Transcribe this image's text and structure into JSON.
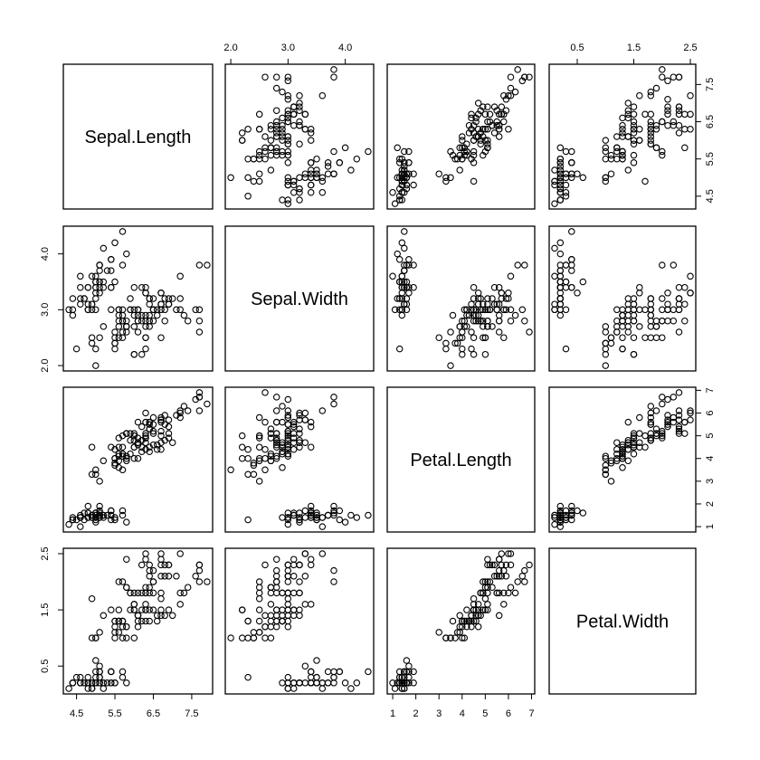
{
  "chart_data": {
    "type": "scatter",
    "chart_kind": "scatterplot-matrix",
    "variables": [
      "Sepal.Length",
      "Sepal.Width",
      "Petal.Length",
      "Petal.Width"
    ],
    "ranges": {
      "Sepal.Length": [
        4.3,
        7.9
      ],
      "Sepal.Width": [
        2.0,
        4.4
      ],
      "Petal.Length": [
        1.0,
        6.9
      ],
      "Petal.Width": [
        0.1,
        2.5
      ]
    },
    "ticks": {
      "Sepal.Length": [
        "4.5",
        "5.5",
        "6.5",
        "7.5"
      ],
      "Sepal.Width": [
        "2.0",
        "3.0",
        "4.0"
      ],
      "Petal.Length": [
        "1",
        "2",
        "3",
        "4",
        "5",
        "6",
        "7"
      ],
      "Petal.Width": [
        "0.5",
        "1.5",
        "2.5"
      ]
    },
    "axis_placement": {
      "Sepal.Length": [
        "bottom",
        "right"
      ],
      "Sepal.Width": [
        "top",
        "left"
      ],
      "Petal.Length": [
        "bottom",
        "right"
      ],
      "Petal.Width": [
        "top",
        "left"
      ]
    },
    "grid": false,
    "point_marker": "open-circle",
    "rows": [
      [
        5.1,
        3.5,
        1.4,
        0.2
      ],
      [
        4.9,
        3.0,
        1.4,
        0.2
      ],
      [
        4.7,
        3.2,
        1.3,
        0.2
      ],
      [
        4.6,
        3.1,
        1.5,
        0.2
      ],
      [
        5.0,
        3.6,
        1.4,
        0.2
      ],
      [
        5.4,
        3.9,
        1.7,
        0.4
      ],
      [
        4.6,
        3.4,
        1.4,
        0.3
      ],
      [
        5.0,
        3.4,
        1.5,
        0.2
      ],
      [
        4.4,
        2.9,
        1.4,
        0.2
      ],
      [
        4.9,
        3.1,
        1.5,
        0.1
      ],
      [
        5.4,
        3.7,
        1.5,
        0.2
      ],
      [
        4.8,
        3.4,
        1.6,
        0.2
      ],
      [
        4.8,
        3.0,
        1.4,
        0.1
      ],
      [
        4.3,
        3.0,
        1.1,
        0.1
      ],
      [
        5.8,
        4.0,
        1.2,
        0.2
      ],
      [
        5.7,
        4.4,
        1.5,
        0.4
      ],
      [
        5.4,
        3.9,
        1.3,
        0.4
      ],
      [
        5.1,
        3.5,
        1.4,
        0.3
      ],
      [
        5.7,
        3.8,
        1.7,
        0.3
      ],
      [
        5.1,
        3.8,
        1.5,
        0.3
      ],
      [
        5.4,
        3.4,
        1.7,
        0.2
      ],
      [
        5.1,
        3.7,
        1.5,
        0.4
      ],
      [
        4.6,
        3.6,
        1.0,
        0.2
      ],
      [
        5.1,
        3.3,
        1.7,
        0.5
      ],
      [
        4.8,
        3.4,
        1.9,
        0.2
      ],
      [
        5.0,
        3.0,
        1.6,
        0.2
      ],
      [
        5.0,
        3.4,
        1.6,
        0.4
      ],
      [
        5.2,
        3.5,
        1.5,
        0.2
      ],
      [
        5.2,
        3.4,
        1.4,
        0.2
      ],
      [
        4.7,
        3.2,
        1.6,
        0.2
      ],
      [
        4.8,
        3.1,
        1.6,
        0.2
      ],
      [
        5.4,
        3.4,
        1.5,
        0.4
      ],
      [
        5.2,
        4.1,
        1.5,
        0.1
      ],
      [
        5.5,
        4.2,
        1.4,
        0.2
      ],
      [
        4.9,
        3.1,
        1.5,
        0.2
      ],
      [
        5.0,
        3.2,
        1.2,
        0.2
      ],
      [
        5.5,
        3.5,
        1.3,
        0.2
      ],
      [
        4.9,
        3.6,
        1.4,
        0.1
      ],
      [
        4.4,
        3.0,
        1.3,
        0.2
      ],
      [
        5.1,
        3.4,
        1.5,
        0.2
      ],
      [
        5.0,
        3.5,
        1.3,
        0.3
      ],
      [
        4.5,
        2.3,
        1.3,
        0.3
      ],
      [
        4.4,
        3.2,
        1.3,
        0.2
      ],
      [
        5.0,
        3.5,
        1.6,
        0.6
      ],
      [
        5.1,
        3.8,
        1.9,
        0.4
      ],
      [
        4.8,
        3.0,
        1.4,
        0.3
      ],
      [
        5.1,
        3.8,
        1.6,
        0.2
      ],
      [
        4.6,
        3.2,
        1.4,
        0.2
      ],
      [
        5.3,
        3.7,
        1.5,
        0.2
      ],
      [
        5.0,
        3.3,
        1.4,
        0.2
      ],
      [
        7.0,
        3.2,
        4.7,
        1.4
      ],
      [
        6.4,
        3.2,
        4.5,
        1.5
      ],
      [
        6.9,
        3.1,
        4.9,
        1.5
      ],
      [
        5.5,
        2.3,
        4.0,
        1.3
      ],
      [
        6.5,
        2.8,
        4.6,
        1.5
      ],
      [
        5.7,
        2.8,
        4.5,
        1.3
      ],
      [
        6.3,
        3.3,
        4.7,
        1.6
      ],
      [
        4.9,
        2.4,
        3.3,
        1.0
      ],
      [
        6.6,
        2.9,
        4.6,
        1.3
      ],
      [
        5.2,
        2.7,
        3.9,
        1.4
      ],
      [
        5.0,
        2.0,
        3.5,
        1.0
      ],
      [
        5.9,
        3.0,
        4.2,
        1.5
      ],
      [
        6.0,
        2.2,
        4.0,
        1.0
      ],
      [
        6.1,
        2.9,
        4.7,
        1.4
      ],
      [
        5.6,
        2.9,
        3.6,
        1.3
      ],
      [
        6.7,
        3.1,
        4.4,
        1.4
      ],
      [
        5.6,
        3.0,
        4.5,
        1.5
      ],
      [
        5.8,
        2.7,
        4.1,
        1.0
      ],
      [
        6.2,
        2.2,
        4.5,
        1.5
      ],
      [
        5.6,
        2.5,
        3.9,
        1.1
      ],
      [
        5.9,
        3.2,
        4.8,
        1.8
      ],
      [
        6.1,
        2.8,
        4.0,
        1.3
      ],
      [
        6.3,
        2.5,
        4.9,
        1.5
      ],
      [
        6.1,
        2.8,
        4.7,
        1.2
      ],
      [
        6.4,
        2.9,
        4.3,
        1.3
      ],
      [
        6.6,
        3.0,
        4.4,
        1.4
      ],
      [
        6.8,
        2.8,
        4.8,
        1.4
      ],
      [
        6.7,
        3.0,
        5.0,
        1.7
      ],
      [
        6.0,
        2.9,
        4.5,
        1.5
      ],
      [
        5.7,
        2.6,
        3.5,
        1.0
      ],
      [
        5.5,
        2.4,
        3.8,
        1.1
      ],
      [
        5.5,
        2.4,
        3.7,
        1.0
      ],
      [
        5.8,
        2.7,
        3.9,
        1.2
      ],
      [
        6.0,
        2.7,
        5.1,
        1.6
      ],
      [
        5.4,
        3.0,
        4.5,
        1.5
      ],
      [
        6.0,
        3.4,
        4.5,
        1.6
      ],
      [
        6.7,
        3.1,
        4.7,
        1.5
      ],
      [
        6.3,
        2.3,
        4.4,
        1.3
      ],
      [
        5.6,
        3.0,
        4.1,
        1.3
      ],
      [
        5.5,
        2.5,
        4.0,
        1.3
      ],
      [
        5.5,
        2.6,
        4.4,
        1.2
      ],
      [
        6.1,
        3.0,
        4.6,
        1.4
      ],
      [
        5.8,
        2.6,
        4.0,
        1.2
      ],
      [
        5.0,
        2.3,
        3.3,
        1.0
      ],
      [
        5.6,
        2.7,
        4.2,
        1.3
      ],
      [
        5.7,
        3.0,
        4.2,
        1.2
      ],
      [
        5.7,
        2.9,
        4.2,
        1.3
      ],
      [
        6.2,
        2.9,
        4.3,
        1.3
      ],
      [
        5.1,
        2.5,
        3.0,
        1.1
      ],
      [
        5.7,
        2.8,
        4.1,
        1.3
      ],
      [
        6.3,
        3.3,
        6.0,
        2.5
      ],
      [
        5.8,
        2.7,
        5.1,
        1.9
      ],
      [
        7.1,
        3.0,
        5.9,
        2.1
      ],
      [
        6.3,
        2.9,
        5.6,
        1.8
      ],
      [
        6.5,
        3.0,
        5.8,
        2.2
      ],
      [
        7.6,
        3.0,
        6.6,
        2.1
      ],
      [
        4.9,
        2.5,
        4.5,
        1.7
      ],
      [
        7.3,
        2.9,
        6.3,
        1.8
      ],
      [
        6.7,
        2.5,
        5.8,
        1.8
      ],
      [
        7.2,
        3.6,
        6.1,
        2.5
      ],
      [
        6.5,
        3.2,
        5.1,
        2.0
      ],
      [
        6.4,
        2.7,
        5.3,
        1.9
      ],
      [
        6.8,
        3.0,
        5.5,
        2.1
      ],
      [
        5.7,
        2.5,
        5.0,
        2.0
      ],
      [
        5.8,
        2.8,
        5.1,
        2.4
      ],
      [
        6.4,
        3.2,
        5.3,
        2.3
      ],
      [
        6.5,
        3.0,
        5.5,
        1.8
      ],
      [
        7.7,
        3.8,
        6.7,
        2.2
      ],
      [
        7.7,
        2.6,
        6.9,
        2.3
      ],
      [
        6.0,
        2.2,
        5.0,
        1.5
      ],
      [
        6.9,
        3.2,
        5.7,
        2.3
      ],
      [
        5.6,
        2.8,
        4.9,
        2.0
      ],
      [
        7.7,
        2.8,
        6.7,
        2.0
      ],
      [
        6.3,
        2.7,
        4.9,
        1.8
      ],
      [
        6.7,
        3.3,
        5.7,
        2.1
      ],
      [
        7.2,
        3.2,
        6.0,
        1.8
      ],
      [
        6.2,
        2.8,
        4.8,
        1.8
      ],
      [
        6.1,
        3.0,
        4.9,
        1.8
      ],
      [
        6.4,
        2.8,
        5.6,
        2.1
      ],
      [
        7.2,
        3.0,
        5.8,
        1.6
      ],
      [
        7.4,
        2.8,
        6.1,
        1.9
      ],
      [
        7.9,
        3.8,
        6.4,
        2.0
      ],
      [
        6.4,
        2.8,
        5.6,
        2.2
      ],
      [
        6.3,
        2.8,
        5.1,
        1.5
      ],
      [
        6.1,
        2.6,
        5.6,
        1.4
      ],
      [
        7.7,
        3.0,
        6.1,
        2.3
      ],
      [
        6.3,
        3.4,
        5.6,
        2.4
      ],
      [
        6.4,
        3.1,
        5.5,
        1.8
      ],
      [
        6.0,
        3.0,
        4.8,
        1.8
      ],
      [
        6.9,
        3.1,
        5.4,
        2.1
      ],
      [
        6.7,
        3.1,
        5.6,
        2.4
      ],
      [
        6.9,
        3.1,
        5.1,
        2.3
      ],
      [
        5.8,
        2.7,
        5.1,
        1.9
      ],
      [
        6.8,
        3.2,
        5.9,
        2.3
      ],
      [
        6.7,
        3.3,
        5.7,
        2.5
      ],
      [
        6.7,
        3.0,
        5.2,
        2.3
      ],
      [
        6.3,
        2.5,
        5.0,
        1.9
      ],
      [
        6.5,
        3.0,
        5.2,
        2.0
      ],
      [
        6.2,
        3.4,
        5.4,
        2.3
      ],
      [
        5.9,
        3.0,
        5.1,
        1.8
      ]
    ]
  }
}
